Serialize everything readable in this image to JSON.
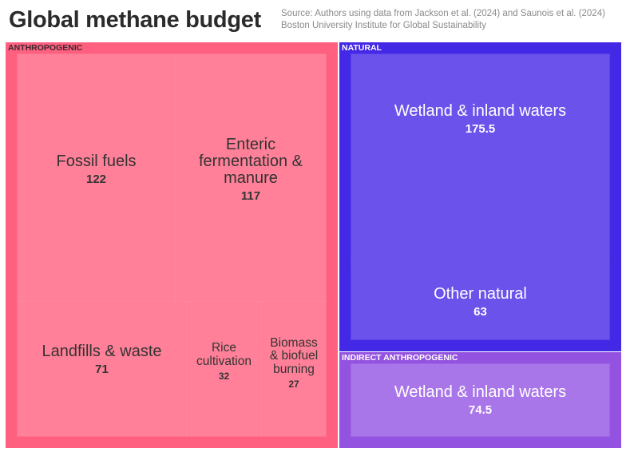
{
  "chart_data": {
    "type": "treemap",
    "title": "Global methane budget",
    "source_lines": [
      "Source: Authors using data from Jackson et al. (2024) and Saunois et al. (2024)",
      "Boston University Institute for Global Sustainability"
    ],
    "groups": [
      {
        "name": "ANTHROPOGENIC",
        "color": "#ff6080",
        "leaf_color": "#ff8098",
        "text_color": "#333333",
        "items": [
          {
            "name": "Fossil fuels",
            "value": 122
          },
          {
            "name": "Enteric fermentation & manure",
            "value": 117
          },
          {
            "name": "Landfills & waste",
            "value": 71
          },
          {
            "name": "Rice cultivation",
            "value": 32
          },
          {
            "name": "Biomass & biofuel burning",
            "value": 27
          }
        ]
      },
      {
        "name": "NATURAL",
        "color": "#4328e6",
        "leaf_color": "#6a52eb",
        "text_color": "#ffffff",
        "items": [
          {
            "name": "Wetland & inland waters",
            "value": 175.5
          },
          {
            "name": "Other natural",
            "value": 63
          }
        ]
      },
      {
        "name": "INDIRECT ANTHROPOGENIC",
        "color": "#9452e0",
        "leaf_color": "#a976ea",
        "text_color": "#ffffff",
        "items": [
          {
            "name": "Wetland & inland waters",
            "value": 74.5
          }
        ]
      }
    ]
  }
}
